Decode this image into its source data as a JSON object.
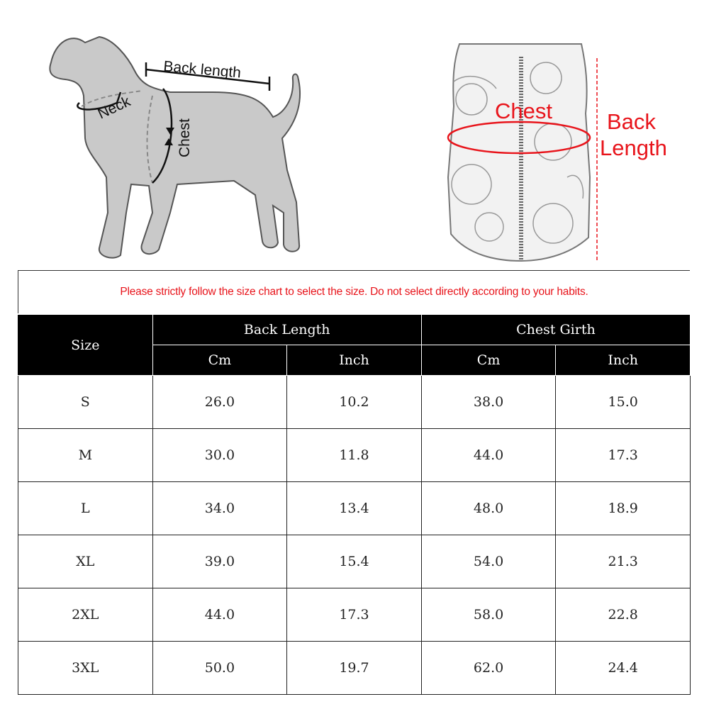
{
  "illustration": {
    "dog_labels": {
      "back_length": "Back length",
      "neck": "Neck",
      "chest": "Chest"
    },
    "vest_labels": {
      "chest": "Chest",
      "back_length_line1": "Back",
      "back_length_line2": "Length"
    },
    "accent_color": "#e8141b"
  },
  "note": "Please strictly follow the size chart to select the size. Do not select directly according to your habits.",
  "table": {
    "size_header": "Size",
    "groups": [
      "Back Length",
      "Chest Girth"
    ],
    "units": [
      "Cm",
      "Inch",
      "Cm",
      "Inch"
    ],
    "rows": [
      [
        "S",
        "26.0",
        "10.2",
        "38.0",
        "15.0"
      ],
      [
        "M",
        "30.0",
        "11.8",
        "44.0",
        "17.3"
      ],
      [
        "L",
        "34.0",
        "13.4",
        "48.0",
        "18.9"
      ],
      [
        "XL",
        "39.0",
        "15.4",
        "54.0",
        "21.3"
      ],
      [
        "2XL",
        "44.0",
        "17.3",
        "58.0",
        "22.8"
      ],
      [
        "3XL",
        "50.0",
        "19.7",
        "62.0",
        "24.4"
      ]
    ]
  }
}
